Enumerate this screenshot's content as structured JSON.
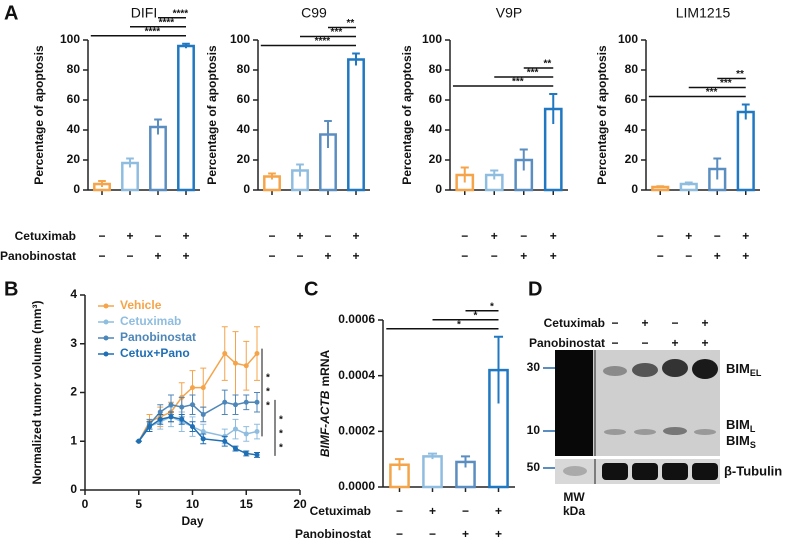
{
  "panels": [
    "A",
    "B",
    "C",
    "D"
  ],
  "treatments": [
    {
      "label": "Cetuximab",
      "signs": [
        "−",
        "+",
        "−",
        "+"
      ]
    },
    {
      "label": "Panobinostat",
      "signs": [
        "−",
        "−",
        "+",
        "+"
      ]
    }
  ],
  "chart_data": [
    {
      "type": "bar",
      "title": "DIFI",
      "y_label": "Percentage of apoptosis",
      "values": [
        4,
        18,
        42,
        96
      ],
      "errors": [
        2,
        3,
        5,
        1.5
      ],
      "colors": [
        "#f5a44a",
        "#8fbde0",
        "#5b8ec0",
        "#1f78c1"
      ],
      "ylim": [
        0,
        100
      ],
      "yticks": [
        0,
        20,
        40,
        60,
        80,
        100
      ],
      "significance": [
        "****",
        "****",
        "****"
      ]
    },
    {
      "type": "bar",
      "title": "C99",
      "y_label": "Percentage of apoptosis",
      "values": [
        9,
        13,
        37,
        87
      ],
      "errors": [
        2,
        4,
        9,
        4
      ],
      "colors": [
        "#f5a44a",
        "#8fbde0",
        "#5b8ec0",
        "#1f78c1"
      ],
      "ylim": [
        0,
        100
      ],
      "yticks": [
        0,
        20,
        40,
        60,
        80,
        100
      ],
      "significance": [
        "**",
        "***",
        "****"
      ]
    },
    {
      "type": "bar",
      "title": "V9P",
      "y_label": "Percentage of apoptosis",
      "values": [
        10,
        10,
        20,
        54
      ],
      "errors": [
        5,
        3,
        7,
        10
      ],
      "colors": [
        "#f5a44a",
        "#8fbde0",
        "#5b8ec0",
        "#1f78c1"
      ],
      "ylim": [
        0,
        100
      ],
      "yticks": [
        0,
        20,
        40,
        60,
        80,
        100
      ],
      "significance": [
        "**",
        "***",
        "***"
      ]
    },
    {
      "type": "bar",
      "title": "LIM1215",
      "y_label": "Percentage of apoptosis",
      "values": [
        2,
        4,
        14,
        52
      ],
      "errors": [
        0.5,
        1,
        7,
        5
      ],
      "colors": [
        "#f5a44a",
        "#8fbde0",
        "#5b8ec0",
        "#1f78c1"
      ],
      "ylim": [
        0,
        100
      ],
      "yticks": [
        0,
        20,
        40,
        60,
        80,
        100
      ],
      "significance": [
        "**",
        "***",
        "***"
      ]
    },
    {
      "type": "line",
      "x_label": "Day",
      "y_label": "Normalized tumor volume (mm³)",
      "x": [
        5,
        6,
        7,
        8,
        9,
        10,
        11,
        13,
        14,
        15,
        16
      ],
      "series": [
        {
          "name": "Vehicle",
          "color": "#f5a44a",
          "values": [
            1,
            1.4,
            1.5,
            1.6,
            1.9,
            2.1,
            2.1,
            2.8,
            2.6,
            2.55,
            2.8
          ],
          "errors": [
            0,
            0.15,
            0.2,
            0.2,
            0.3,
            0.35,
            0.4,
            0.55,
            0.65,
            0.5,
            0.55
          ]
        },
        {
          "name": "Cetuximab",
          "color": "#8fbde0",
          "values": [
            1,
            1.3,
            1.4,
            1.5,
            1.4,
            1.3,
            1.2,
            1.1,
            1.25,
            1.15,
            1.2
          ],
          "errors": [
            0,
            0.1,
            0.15,
            0.2,
            0.2,
            0.2,
            0.15,
            0.15,
            0.2,
            0.15,
            0.15
          ]
        },
        {
          "name": "Panobinostat",
          "color": "#4d86b8",
          "values": [
            1,
            1.35,
            1.6,
            1.75,
            1.7,
            1.75,
            1.55,
            1.8,
            1.75,
            1.8,
            1.8
          ],
          "errors": [
            0,
            0.1,
            0.15,
            0.2,
            0.2,
            0.2,
            0.15,
            0.25,
            0.2,
            0.15,
            0.2
          ]
        },
        {
          "name": "Cetux+Pano",
          "color": "#1f6fb5",
          "values": [
            1,
            1.3,
            1.45,
            1.5,
            1.45,
            1.3,
            1.05,
            1.0,
            0.85,
            0.75,
            0.72
          ],
          "errors": [
            0,
            0.1,
            0.1,
            0.1,
            0.1,
            0.1,
            0.1,
            0.1,
            0.05,
            0.05,
            0.05
          ]
        }
      ],
      "xlim": [
        0,
        20
      ],
      "xticks": [
        0,
        5,
        10,
        15,
        20
      ],
      "ylim": [
        0,
        4
      ],
      "yticks": [
        0,
        1,
        2,
        3,
        4
      ],
      "significance": [
        "*",
        "*",
        "*",
        "*",
        "*",
        "*"
      ]
    },
    {
      "type": "bar",
      "y_label_gene": "BIMF-ACTB",
      "y_label": "mRNA",
      "values": [
        8e-05,
        0.00011,
        9e-05,
        0.00042
      ],
      "errors": [
        2e-05,
        1e-05,
        2e-05,
        0.00012
      ],
      "colors": [
        "#f5a44a",
        "#8fbde0",
        "#5b8ec0",
        "#1f78c1"
      ],
      "ylim": [
        0,
        0.0006
      ],
      "yticks": [
        {
          "value": 0,
          "label": "0.0000"
        },
        {
          "value": 0.0002,
          "label": "0.0002"
        },
        {
          "value": 0.0004,
          "label": "0.0004"
        },
        {
          "value": 0.0006,
          "label": "0.0006"
        }
      ],
      "significance": [
        "*",
        "*",
        "*"
      ]
    }
  ],
  "blot": {
    "ladder": [
      30,
      10,
      50
    ],
    "mw_label": [
      "MW",
      "kDa"
    ],
    "bands": [
      {
        "name": "BIM",
        "sub": "EL"
      },
      {
        "name": "BIM",
        "sub": "L"
      },
      {
        "name": "BIM",
        "sub": "S"
      },
      {
        "name": "β-Tubulin"
      }
    ]
  }
}
